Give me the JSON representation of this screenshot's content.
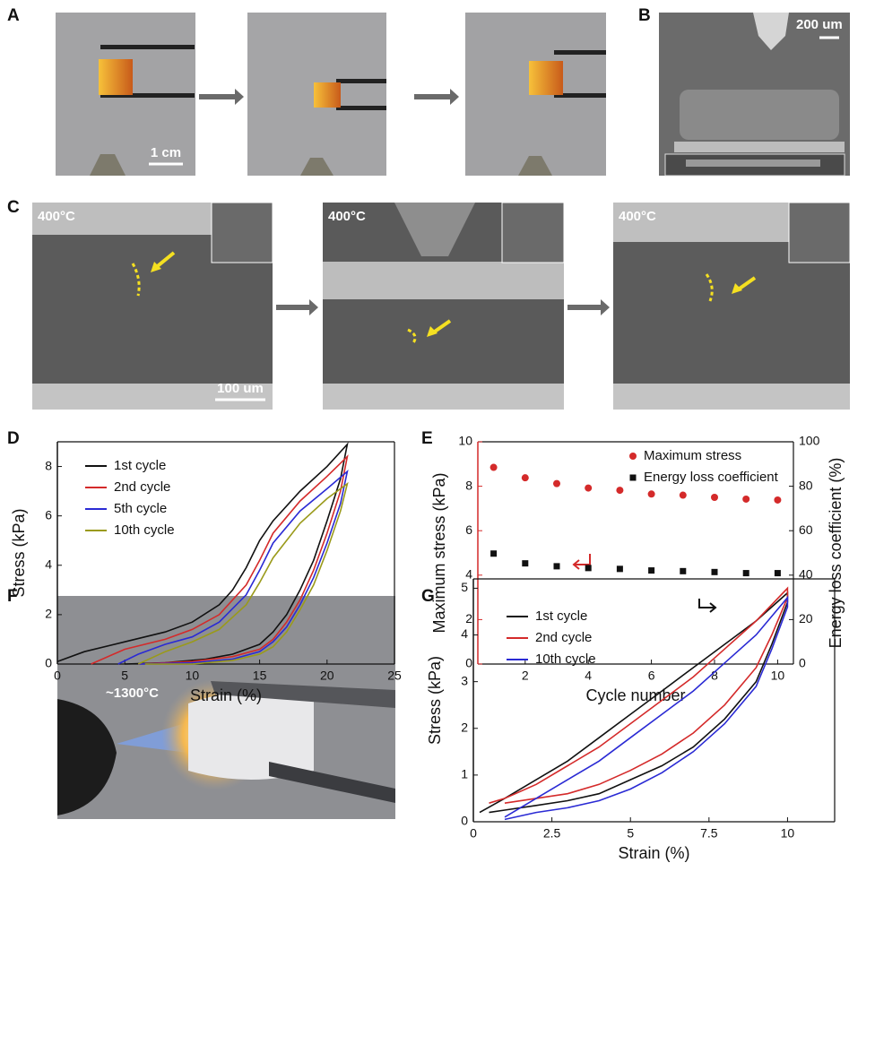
{
  "panel_labels": [
    "A",
    "B",
    "C",
    "D",
    "E",
    "F",
    "G"
  ],
  "photo_texts": {
    "a_scale": "1 cm",
    "b_scale": "200 um",
    "c_temp_1": "400°C",
    "c_temp_2": "400°C",
    "c_temp_3": "400°C",
    "c_scale": "100 um",
    "f_temp": "~1300°C"
  },
  "chart_data": [
    {
      "type": "line",
      "x_label": "Strain (%)",
      "y_label": "Stress (kPa)",
      "xlim": [
        0,
        25
      ],
      "xticks": [
        0,
        5,
        10,
        15,
        20,
        25
      ],
      "ylim": [
        0,
        9
      ],
      "yticks": [
        0,
        2,
        4,
        6,
        8
      ],
      "series": [
        {
          "name": "1st cycle",
          "color": "#111111",
          "x": [
            0,
            2,
            5,
            8,
            10,
            12,
            13,
            14,
            15,
            16,
            18,
            20,
            21.5,
            21,
            20,
            19,
            18,
            17,
            16,
            15,
            13,
            11,
            8,
            5
          ],
          "values": [
            0.1,
            0.5,
            0.9,
            1.3,
            1.7,
            2.4,
            3.0,
            3.9,
            5.0,
            5.8,
            7.0,
            8.0,
            8.9,
            7.5,
            5.8,
            4.2,
            3.0,
            2.0,
            1.3,
            0.8,
            0.4,
            0.2,
            0.05,
            0
          ]
        },
        {
          "name": "2nd cycle",
          "color": "#d42a2a",
          "x": [
            2.5,
            5,
            8,
            10,
            12,
            14,
            15,
            16,
            18,
            20,
            21.5,
            21,
            20,
            19,
            18,
            17,
            16,
            15,
            13,
            10,
            6
          ],
          "values": [
            0,
            0.6,
            1.0,
            1.4,
            2.0,
            3.2,
            4.2,
            5.3,
            6.6,
            7.6,
            8.4,
            7.0,
            5.3,
            3.8,
            2.6,
            1.7,
            1.0,
            0.6,
            0.3,
            0.1,
            0
          ]
        },
        {
          "name": "5th cycle",
          "color": "#2a2ad4",
          "x": [
            4.5,
            6,
            8,
            10,
            12,
            14,
            15,
            16,
            18,
            20,
            21.5,
            21,
            20,
            19,
            18,
            17,
            16,
            15,
            13,
            10,
            6
          ],
          "values": [
            0,
            0.4,
            0.8,
            1.1,
            1.7,
            2.8,
            3.8,
            4.9,
            6.2,
            7.1,
            7.8,
            6.5,
            4.9,
            3.5,
            2.4,
            1.5,
            0.9,
            0.5,
            0.2,
            0.05,
            0
          ]
        },
        {
          "name": "10th cycle",
          "color": "#9a9a1a",
          "x": [
            6,
            8,
            10,
            12,
            14,
            15,
            16,
            18,
            20,
            21.5,
            21,
            20,
            19,
            18,
            17,
            16,
            15,
            13,
            10,
            6.5
          ],
          "values": [
            0,
            0.5,
            0.9,
            1.4,
            2.4,
            3.3,
            4.3,
            5.7,
            6.7,
            7.3,
            6.2,
            4.6,
            3.2,
            2.2,
            1.3,
            0.7,
            0.4,
            0.15,
            0,
            0
          ]
        }
      ]
    },
    {
      "type": "scatter",
      "x_label": "Cycle number",
      "y_label": "Maximum stress (kPa)",
      "y2_label": "Energy loss coefficient (%)",
      "xlim": [
        0.5,
        10.5
      ],
      "xticks": [
        2,
        4,
        6,
        8,
        10
      ],
      "ylim": [
        0,
        10
      ],
      "yticks": [
        0,
        2,
        4,
        6,
        8,
        10
      ],
      "y2lim": [
        0,
        100
      ],
      "y2ticks": [
        0,
        20,
        40,
        60,
        80,
        100
      ],
      "y_axis_color": "#d42a2a",
      "series": [
        {
          "name": "Maximum stress",
          "color": "#d42a2a",
          "marker": "circle",
          "x": [
            1,
            2,
            3,
            4,
            5,
            6,
            7,
            8,
            9,
            10
          ],
          "values": [
            8.85,
            8.38,
            8.12,
            7.92,
            7.82,
            7.65,
            7.6,
            7.5,
            7.42,
            7.38
          ]
        },
        {
          "name": "Energy loss coefficient",
          "color": "#111111",
          "marker": "square",
          "axis": "y2",
          "x": [
            1,
            2,
            3,
            4,
            5,
            6,
            7,
            8,
            9,
            10
          ],
          "values": [
            49.7,
            45.3,
            44.0,
            43.2,
            42.8,
            42.1,
            41.8,
            41.4,
            40.9,
            40.9
          ]
        }
      ]
    },
    {
      "type": "line",
      "x_label": "Strain (%)",
      "y_label": "Stress (kPa)",
      "xlim": [
        0,
        11.5
      ],
      "xticks": [
        0,
        2.5,
        5,
        7.5,
        10
      ],
      "ylim": [
        0,
        5.2
      ],
      "yticks": [
        0,
        1,
        2,
        3,
        4,
        5
      ],
      "series": [
        {
          "name": "1st cycle",
          "color": "#111111",
          "x": [
            0.2,
            1,
            2,
            3,
            4,
            5,
            6,
            7,
            8,
            9,
            10,
            10,
            9.5,
            9,
            8,
            7,
            6,
            5,
            4,
            3,
            2,
            1,
            0.5
          ],
          "values": [
            0.2,
            0.5,
            0.9,
            1.3,
            1.8,
            2.3,
            2.8,
            3.3,
            3.8,
            4.3,
            4.9,
            4.7,
            3.8,
            3.0,
            2.2,
            1.6,
            1.2,
            0.9,
            0.6,
            0.45,
            0.35,
            0.25,
            0.2
          ]
        },
        {
          "name": "2nd cycle",
          "color": "#d42a2a",
          "x": [
            0.5,
            1,
            2,
            3,
            4,
            5,
            6,
            7,
            8,
            9,
            10,
            10,
            9.5,
            9,
            8,
            7,
            6,
            5,
            4,
            3,
            2,
            1
          ],
          "values": [
            0.4,
            0.5,
            0.8,
            1.2,
            1.6,
            2.1,
            2.6,
            3.1,
            3.7,
            4.3,
            5.0,
            4.8,
            4.0,
            3.3,
            2.5,
            1.9,
            1.45,
            1.1,
            0.8,
            0.6,
            0.5,
            0.4
          ]
        },
        {
          "name": "10th cycle",
          "color": "#2a2ad4",
          "x": [
            1,
            2,
            3,
            4,
            5,
            6,
            7,
            8,
            9,
            10,
            10,
            9.5,
            9,
            8,
            7,
            6,
            5,
            4,
            3,
            2,
            1
          ],
          "values": [
            0.1,
            0.5,
            0.9,
            1.3,
            1.8,
            2.3,
            2.8,
            3.4,
            4.0,
            4.8,
            4.6,
            3.7,
            2.9,
            2.1,
            1.5,
            1.05,
            0.7,
            0.45,
            0.3,
            0.2,
            0.05
          ]
        }
      ]
    }
  ]
}
